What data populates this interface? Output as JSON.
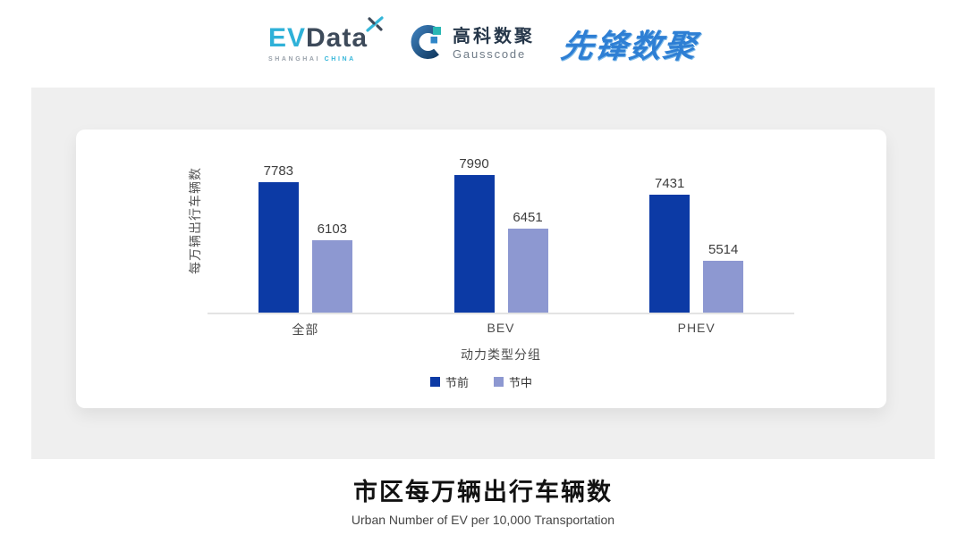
{
  "header": {
    "evdata_logo": {
      "ev": "EV",
      "data": "Data",
      "mark_icon": "x-star-mark",
      "sub_left": "SHANGHAI",
      "sub_right": "CHINA"
    },
    "gausscode_logo": {
      "icon": "g-ring-mark",
      "cn": "高科数聚",
      "en": "Gausscode"
    },
    "xianfeng_logo": {
      "text": "先锋数聚"
    }
  },
  "chart_data": {
    "type": "bar",
    "title": "市区每万辆出行车辆数",
    "subtitle": "Urban Number of EV per 10,000 Transportation",
    "xlabel": "动力类型分组",
    "ylabel": "每万辆出行车辆数",
    "categories": [
      "全部",
      "BEV",
      "PHEV"
    ],
    "series": [
      {
        "name": "节前",
        "color": "#0c3aa5",
        "values": [
          7783,
          7990,
          7431
        ]
      },
      {
        "name": "节中",
        "color": "#8d98d1",
        "values": [
          6103,
          6451,
          5514
        ]
      }
    ],
    "ylim": [
      4000,
      8150
    ],
    "grid": false,
    "legend_position": "bottom",
    "axis_color": "#e3e3e3"
  },
  "colors": {
    "panel_bg": "#efefef",
    "brand_cyan": "#35b6d9",
    "brand_navy": "#3d4a5a",
    "gauss_navy": "#1d5586",
    "gauss_teal": "#28b7b4",
    "xianfeng_blue": "#2e7fd4",
    "series_pre_festival": "#0c3aa5",
    "series_mid_festival": "#8d98d1"
  }
}
